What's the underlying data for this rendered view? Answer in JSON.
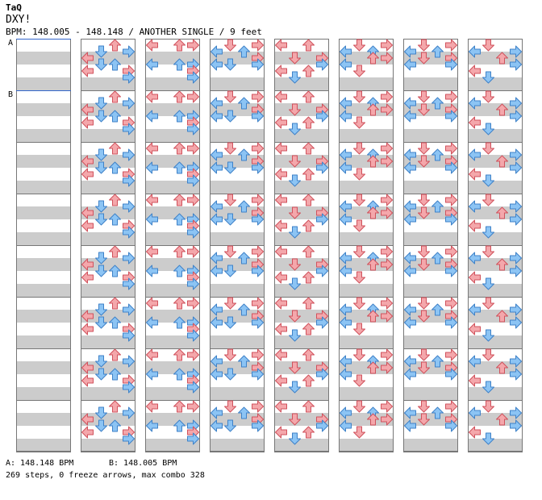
{
  "header": {
    "artist": "TaQ",
    "title": "DXY!",
    "info": "BPM: 148.005 - 148.148 / ANOTHER SINGLE / 9 feet"
  },
  "markers": {
    "a": "A",
    "b": "B"
  },
  "footer": {
    "bpm_a": "A: 148.148 BPM",
    "bpm_b": "B: 148.005 BPM",
    "summary": "269 steps, 0 freeze arrows, max combo 328"
  },
  "colors": {
    "note_red": "#f4a7ab",
    "note_red_stroke": "#d0525c",
    "note_blue": "#8cc4f4",
    "note_blue_stroke": "#3f82c8",
    "stripe_gray": "#cccccc",
    "bpm_line": "#3366cc"
  },
  "chart_data": {
    "type": "step-chart",
    "columns": 8,
    "measures_per_column": 8,
    "lanes": [
      "left",
      "down",
      "up",
      "right"
    ],
    "note_color_rule": "red on quarter beats, blue on eighth offbeats",
    "notes": [
      [],
      [
        [
          0,
          2
        ],
        [
          0,
          4
        ],
        [
          1,
          1
        ],
        [
          1,
          3
        ],
        [
          2,
          0
        ],
        [
          2,
          3
        ],
        [
          3,
          1
        ],
        [
          3,
          4
        ],
        [
          3,
          5
        ]
      ],
      [
        [
          0,
          0
        ],
        [
          0,
          3
        ],
        [
          2,
          0
        ],
        [
          2,
          3
        ],
        [
          3,
          0
        ],
        [
          3,
          3
        ],
        [
          3,
          4
        ],
        [
          3,
          5
        ]
      ],
      [
        [
          0,
          1
        ],
        [
          0,
          3
        ],
        [
          1,
          0
        ],
        [
          1,
          3
        ],
        [
          2,
          1
        ],
        [
          3,
          0
        ],
        [
          3,
          2
        ],
        [
          3,
          3
        ]
      ],
      [
        [
          0,
          0
        ],
        [
          0,
          4
        ],
        [
          1,
          2
        ],
        [
          1,
          5
        ],
        [
          2,
          0
        ],
        [
          2,
          4
        ],
        [
          3,
          2
        ],
        [
          3,
          3
        ]
      ],
      [
        [
          0,
          1
        ],
        [
          0,
          3
        ],
        [
          1,
          0
        ],
        [
          1,
          4
        ],
        [
          2,
          1
        ],
        [
          2,
          2
        ],
        [
          3,
          0
        ],
        [
          3,
          2
        ]
      ],
      [
        [
          0,
          1
        ],
        [
          0,
          3
        ],
        [
          1,
          0
        ],
        [
          1,
          2
        ],
        [
          2,
          1
        ],
        [
          3,
          0
        ],
        [
          3,
          2
        ],
        [
          3,
          3
        ]
      ],
      [
        [
          0,
          1
        ],
        [
          0,
          4
        ],
        [
          1,
          0
        ],
        [
          1,
          5
        ],
        [
          2,
          2
        ],
        [
          3,
          1
        ],
        [
          3,
          3
        ]
      ]
    ]
  }
}
